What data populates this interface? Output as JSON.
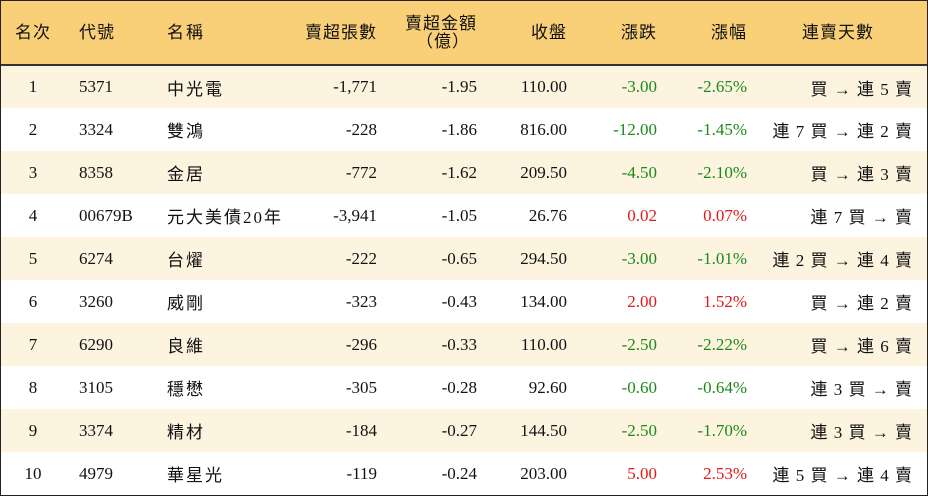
{
  "headers": {
    "rank": "名次",
    "code": "代號",
    "name": "名稱",
    "net_sell_lots": "賣超張數",
    "net_sell_amount_line1": "賣超金額",
    "net_sell_amount_line2": "（億）",
    "close": "收盤",
    "change": "漲跌",
    "change_pct": "漲幅",
    "streak": "連賣天數"
  },
  "colors": {
    "header_bg": "#f9cf78",
    "row_alt_bg": "#fdf4df",
    "down": "#1a8a1a",
    "up": "#e01818"
  },
  "rows": [
    {
      "rank": "1",
      "code": "5371",
      "name": "中光電",
      "net_sell_lots": "-1,771",
      "net_sell_amount": "-1.95",
      "close": "110.00",
      "change": "-3.00",
      "change_pct": "-2.65%",
      "direction": "down",
      "streak": "買 → 連 5 賣"
    },
    {
      "rank": "2",
      "code": "3324",
      "name": "雙鴻",
      "net_sell_lots": "-228",
      "net_sell_amount": "-1.86",
      "close": "816.00",
      "change": "-12.00",
      "change_pct": "-1.45%",
      "direction": "down",
      "streak": "連 7 買 → 連 2 賣"
    },
    {
      "rank": "3",
      "code": "8358",
      "name": "金居",
      "net_sell_lots": "-772",
      "net_sell_amount": "-1.62",
      "close": "209.50",
      "change": "-4.50",
      "change_pct": "-2.10%",
      "direction": "down",
      "streak": "買 → 連 3 賣"
    },
    {
      "rank": "4",
      "code": "00679B",
      "name": "元大美債20年",
      "net_sell_lots": "-3,941",
      "net_sell_amount": "-1.05",
      "close": "26.76",
      "change": "0.02",
      "change_pct": "0.07%",
      "direction": "up",
      "streak": "連 7 買 → 賣"
    },
    {
      "rank": "5",
      "code": "6274",
      "name": "台燿",
      "net_sell_lots": "-222",
      "net_sell_amount": "-0.65",
      "close": "294.50",
      "change": "-3.00",
      "change_pct": "-1.01%",
      "direction": "down",
      "streak": "連 2 買 → 連 4 賣"
    },
    {
      "rank": "6",
      "code": "3260",
      "name": "威剛",
      "net_sell_lots": "-323",
      "net_sell_amount": "-0.43",
      "close": "134.00",
      "change": "2.00",
      "change_pct": "1.52%",
      "direction": "up",
      "streak": "買 → 連 2 賣"
    },
    {
      "rank": "7",
      "code": "6290",
      "name": "良維",
      "net_sell_lots": "-296",
      "net_sell_amount": "-0.33",
      "close": "110.00",
      "change": "-2.50",
      "change_pct": "-2.22%",
      "direction": "down",
      "streak": "買 → 連 6 賣"
    },
    {
      "rank": "8",
      "code": "3105",
      "name": "穩懋",
      "net_sell_lots": "-305",
      "net_sell_amount": "-0.28",
      "close": "92.60",
      "change": "-0.60",
      "change_pct": "-0.64%",
      "direction": "down",
      "streak": "連 3 買 → 賣"
    },
    {
      "rank": "9",
      "code": "3374",
      "name": "精材",
      "net_sell_lots": "-184",
      "net_sell_amount": "-0.27",
      "close": "144.50",
      "change": "-2.50",
      "change_pct": "-1.70%",
      "direction": "down",
      "streak": "連 3 買 → 賣"
    },
    {
      "rank": "10",
      "code": "4979",
      "name": "華星光",
      "net_sell_lots": "-119",
      "net_sell_amount": "-0.24",
      "close": "203.00",
      "change": "5.00",
      "change_pct": "2.53%",
      "direction": "up",
      "streak": "連 5 買 → 連 4 賣"
    }
  ]
}
